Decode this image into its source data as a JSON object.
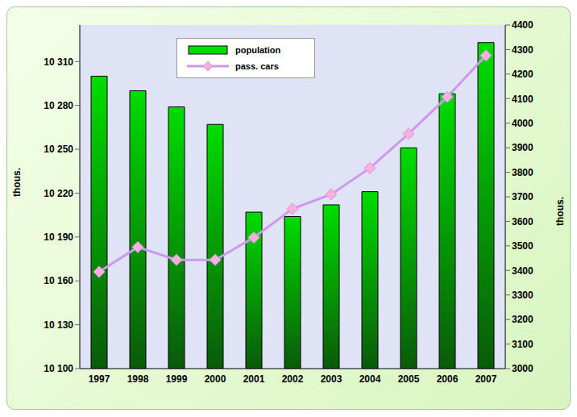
{
  "chart_data": {
    "type": "bar",
    "categories": [
      "1997",
      "1998",
      "1999",
      "2000",
      "2001",
      "2002",
      "2003",
      "2004",
      "2005",
      "2006",
      "2007"
    ],
    "series": [
      {
        "name": "population",
        "type": "bar",
        "color": "#00dd00",
        "values": [
          10300,
          10290,
          10279,
          10267,
          10207,
          10204,
          10212,
          10221,
          10251,
          10288,
          10323
        ]
      },
      {
        "name": "pass. cars",
        "type": "line",
        "axis": "y2",
        "color": "#cc99ee",
        "marker": "diamond",
        "values": [
          3394,
          3495,
          3443,
          3443,
          3534,
          3651,
          3710,
          3817,
          3957,
          4107,
          4276
        ]
      }
    ],
    "ylim": [
      10100,
      10335
    ],
    "yticks": [
      {
        "value": 10100,
        "label": "10 100"
      },
      {
        "value": 10130,
        "label": "10 130"
      },
      {
        "value": 10160,
        "label": "10 160"
      },
      {
        "value": 10190,
        "label": "10 190"
      },
      {
        "value": 10220,
        "label": "10 220"
      },
      {
        "value": 10250,
        "label": "10 250"
      },
      {
        "value": 10280,
        "label": "10 280"
      },
      {
        "value": 10310,
        "label": "10 310"
      }
    ],
    "y2lim": [
      3000,
      4400
    ],
    "y2ticks": [
      3000,
      3100,
      3200,
      3300,
      3400,
      3500,
      3600,
      3700,
      3800,
      3900,
      4000,
      4100,
      4200,
      4300,
      4400
    ],
    "ylabel": "thous.",
    "y2label": "thous.",
    "legend": "top",
    "grid": false
  }
}
